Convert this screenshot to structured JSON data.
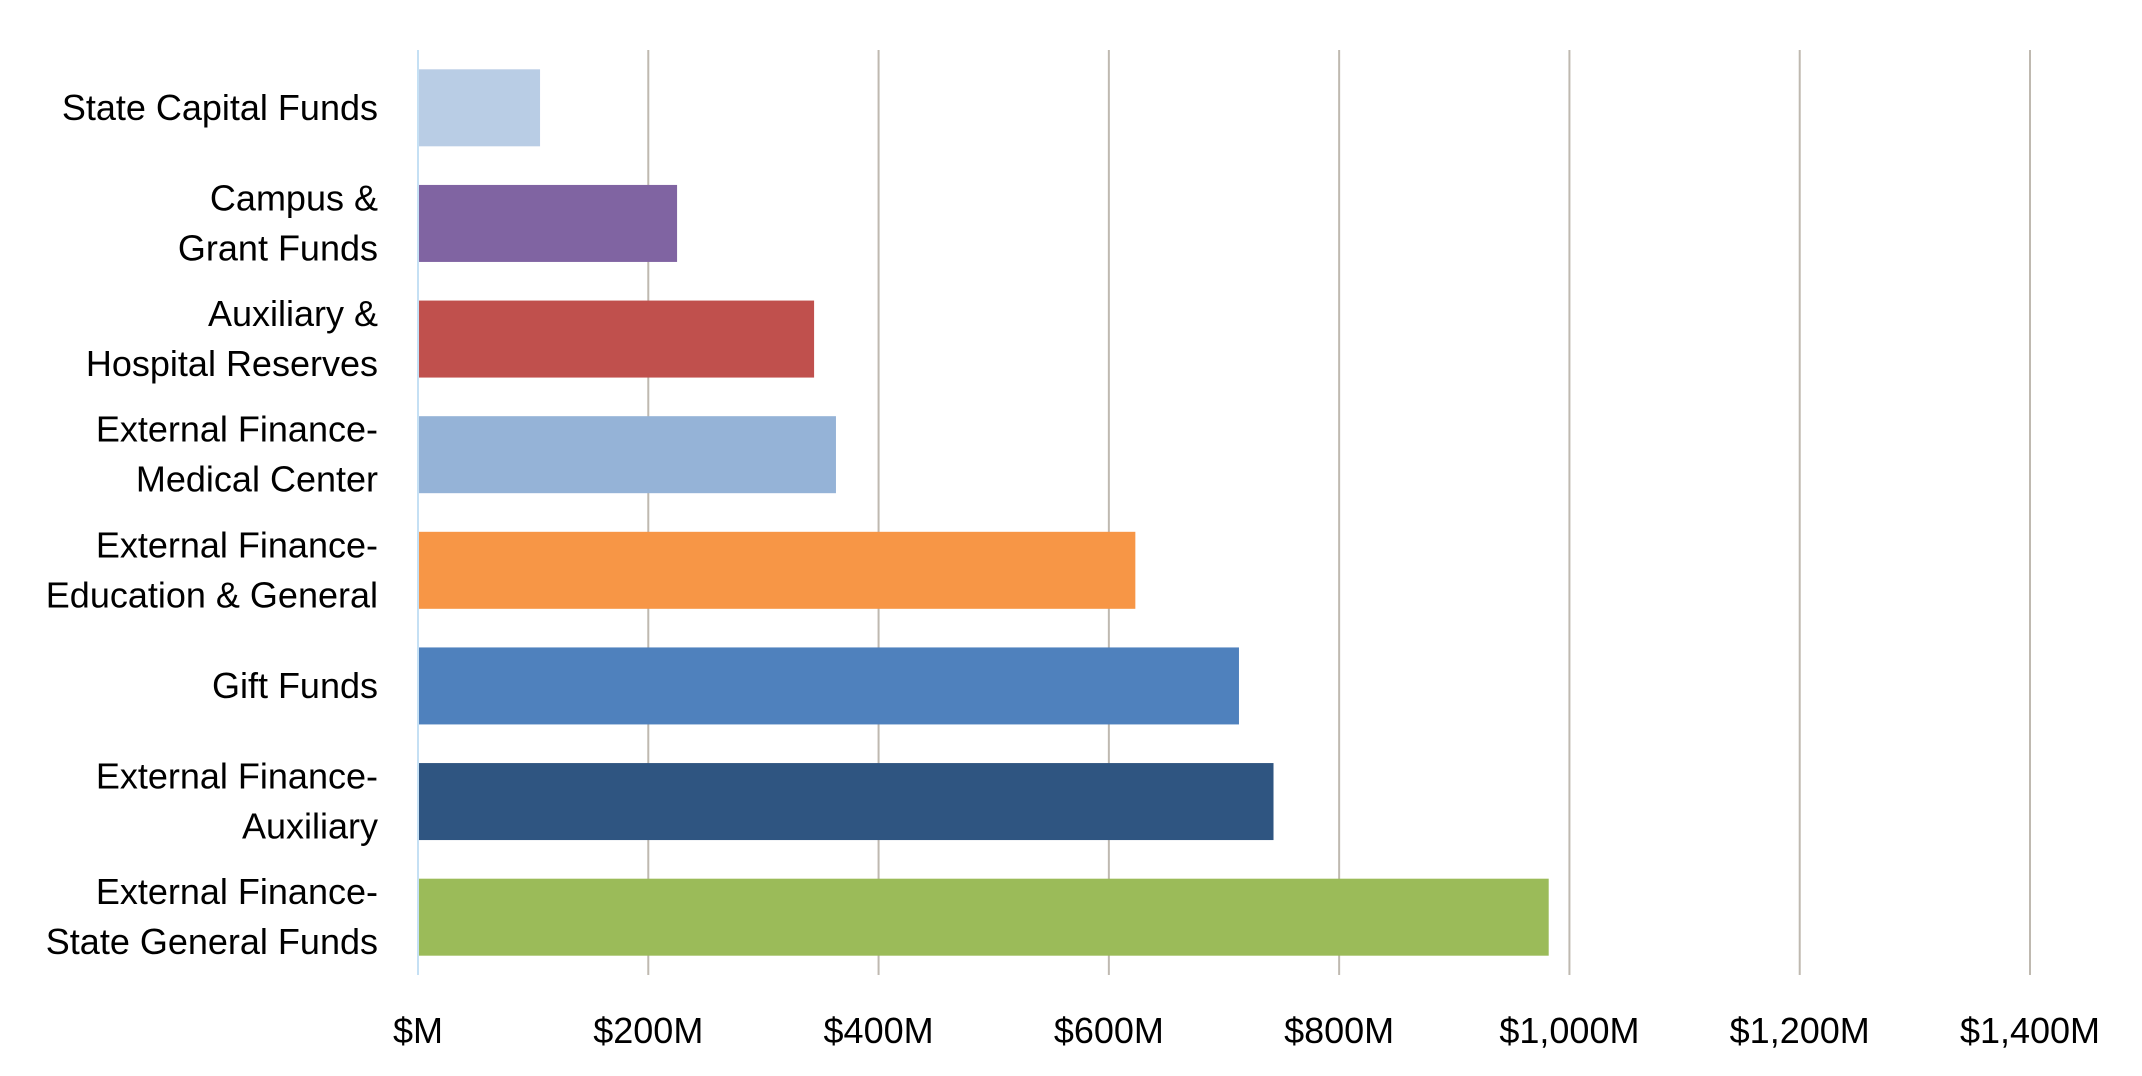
{
  "chart_data": {
    "type": "bar",
    "orientation": "horizontal",
    "title": "",
    "xlabel": "",
    "ylabel": "",
    "xlim": [
      0,
      1400
    ],
    "grid": true,
    "legend": "none",
    "x_ticks": [
      "$M",
      "$200M",
      "$400M",
      "$600M",
      "$800M",
      "$1,000M",
      "$1,200M",
      "$1,400M"
    ],
    "x_tick_values": [
      0,
      200,
      400,
      600,
      800,
      1000,
      1200,
      1400
    ],
    "categories": [
      {
        "lines": [
          "State Capital Funds"
        ],
        "value": 106,
        "color": "#B9CDE5"
      },
      {
        "lines": [
          "Campus &",
          "Grant Funds"
        ],
        "value": 225,
        "color": "#8064A2"
      },
      {
        "lines": [
          "Auxiliary &",
          "Hospital Reserves"
        ],
        "value": 344,
        "color": "#C0504D"
      },
      {
        "lines": [
          "External Finance-",
          "Medical Center"
        ],
        "value": 363,
        "color": "#95B3D7"
      },
      {
        "lines": [
          "External Finance-",
          "Education & General"
        ],
        "value": 623,
        "color": "#F79646"
      },
      {
        "lines": [
          "Gift Funds"
        ],
        "value": 713,
        "color": "#4F81BD"
      },
      {
        "lines": [
          "External Finance-",
          "Auxiliary"
        ],
        "value": 743,
        "color": "#2F5581"
      },
      {
        "lines": [
          "External Finance-",
          "State General Funds"
        ],
        "value": 982,
        "color": "#9BBB59"
      }
    ],
    "gridline_color": "#BFB9B0",
    "axis_color": "#C5E0F4"
  }
}
